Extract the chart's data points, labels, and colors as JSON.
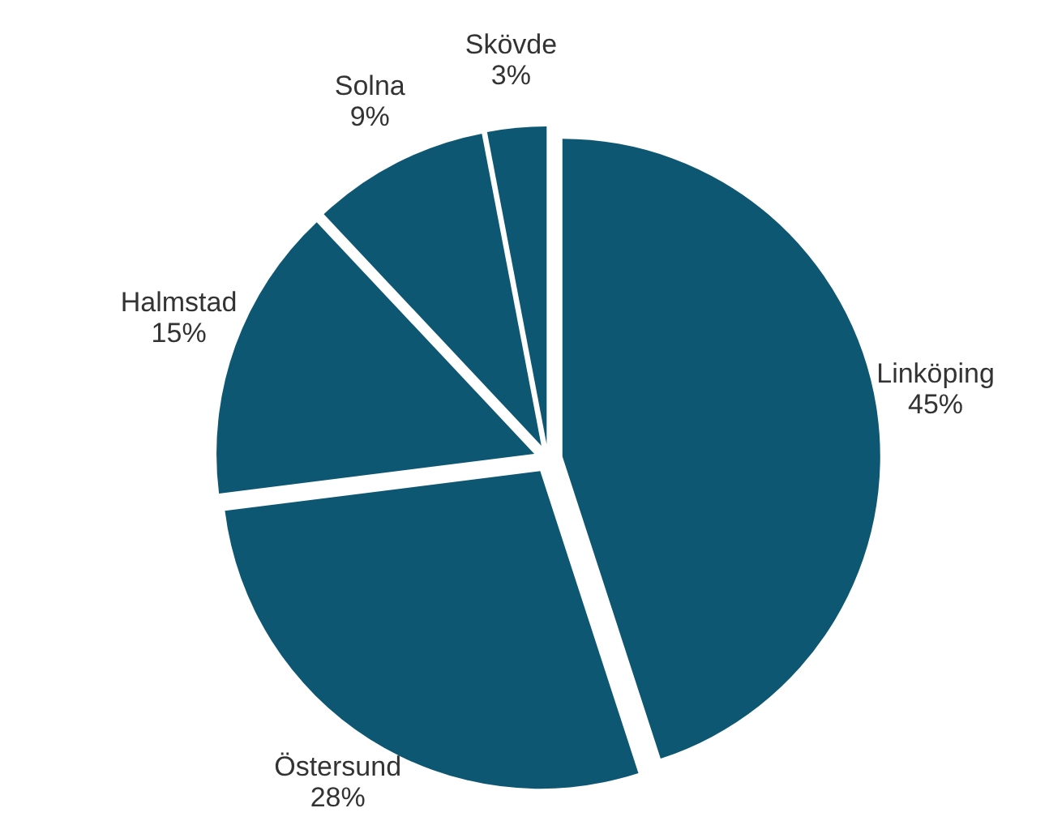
{
  "chart_data": {
    "type": "pie",
    "categories": [
      "Linköping",
      "Östersund",
      "Halmstad",
      "Solna",
      "Skövde"
    ],
    "values": [
      45,
      28,
      15,
      9,
      3
    ],
    "value_labels": [
      "45%",
      "28%",
      "15%",
      "9%",
      "3%"
    ],
    "colors": [
      "#0d5772",
      "#0d5772",
      "#0d5772",
      "#0d5772",
      "#0d5772"
    ],
    "legend": false
  }
}
